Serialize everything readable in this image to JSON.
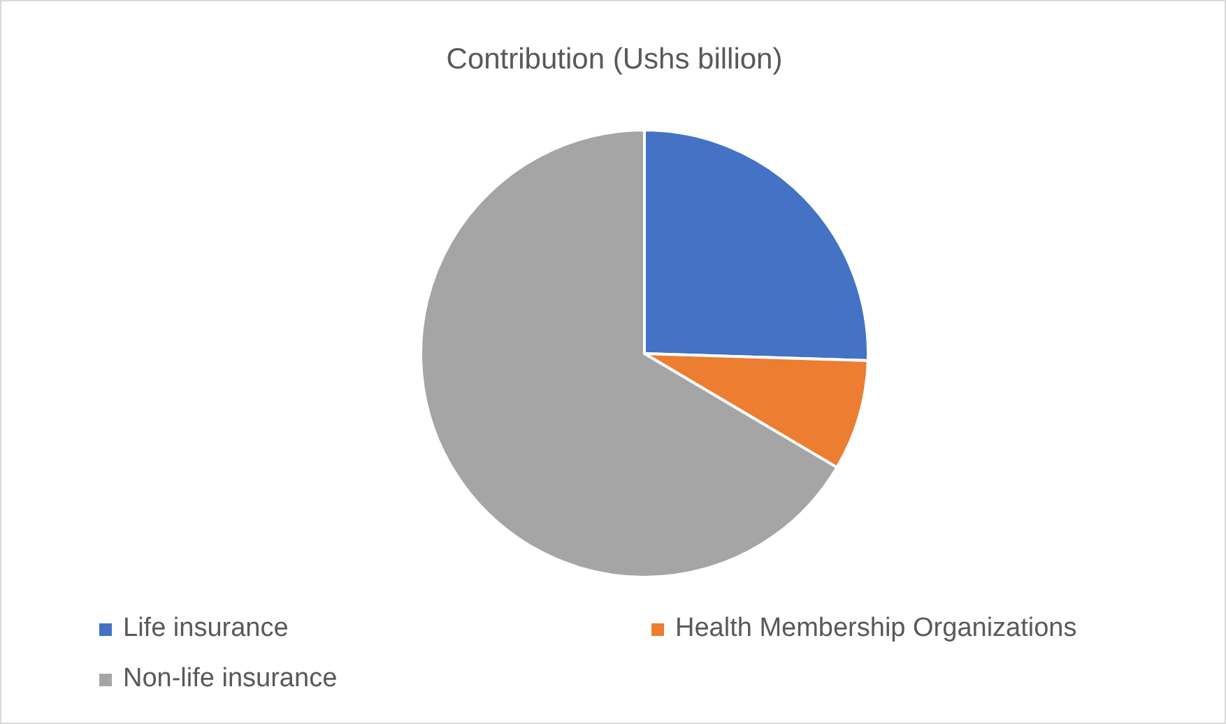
{
  "chart_data": {
    "type": "pie",
    "title": "Contribution (Ushs billion)",
    "categories": [
      "Life insurance",
      "Health Membership Organizations",
      "Non-life insurance"
    ],
    "values": [
      25.5,
      8,
      66.5
    ],
    "colors": [
      "#4472c4",
      "#ed7d31",
      "#a5a5a5"
    ],
    "legend": "bottom"
  }
}
